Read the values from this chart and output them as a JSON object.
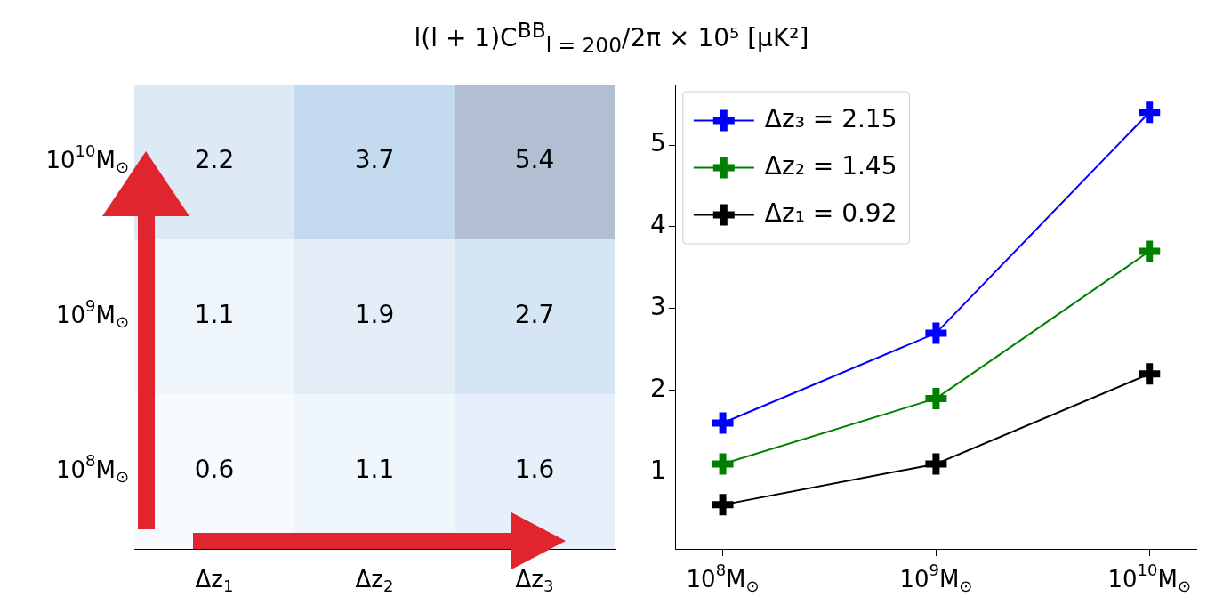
{
  "chart_data": [
    {
      "type": "heatmap",
      "title": "l(l + 1)C$^{BB}$$_{l = 200}$/2π × 10⁵ [μK²]",
      "categories": [
        "Δz$_{1}$",
        "Δz$_{2}$",
        "Δz$_{3}$"
      ],
      "y_categories": [
        "10$^{10}$M$_{⊙}$",
        "10$^{9}$M$_{⊙}$",
        "10$^{8}$M$_{⊙}$"
      ],
      "cells": [
        [
          2.2,
          3.7,
          5.4
        ],
        [
          1.1,
          1.9,
          2.7
        ],
        [
          0.6,
          1.1,
          1.6
        ]
      ],
      "data_labels": true
    },
    {
      "type": "line",
      "categories": [
        "10$^{8}$M$_{⊙}$",
        "10$^{9}$M$_{⊙}$",
        "10$^{10}$M$_{⊙}$"
      ],
      "series": [
        {
          "name": "Δz₃ = 2.15",
          "color": "#0000ff",
          "values": [
            1.6,
            2.7,
            5.4
          ]
        },
        {
          "name": "Δz₂ = 1.45",
          "color": "#008000",
          "values": [
            1.1,
            1.9,
            3.7
          ]
        },
        {
          "name": "Δz₁ = 0.92",
          "color": "#000000",
          "values": [
            0.6,
            1.1,
            2.2
          ]
        }
      ],
      "ylim": [
        0.06,
        5.74
      ],
      "yticks": [
        1,
        2,
        3,
        4,
        5
      ],
      "grid": false,
      "legend": "top left",
      "marker": "cross"
    }
  ]
}
